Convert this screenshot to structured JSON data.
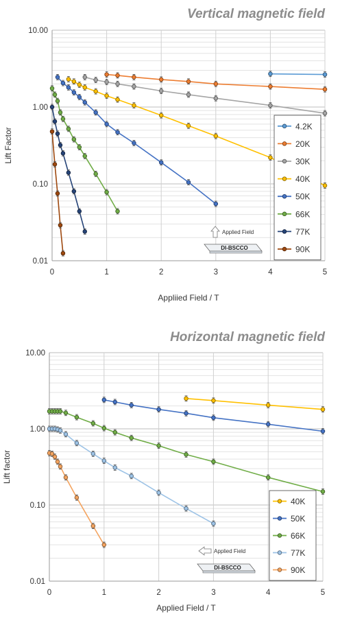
{
  "chart_data": [
    {
      "type": "scatter",
      "title": "Vertical magnetic field",
      "xlabel": "Appliied Field / T",
      "ylabel": "Lift Factor",
      "yscale": "log",
      "xlim": [
        0,
        5
      ],
      "ylim": [
        0.01,
        10
      ],
      "xticks": [
        "0",
        "1",
        "2",
        "3",
        "4",
        "5"
      ],
      "yticks": [
        "0.01",
        "0.10",
        "1.00",
        "10.00"
      ],
      "grid": true,
      "legend_position": "right",
      "annotation_arrow": "Applied Field",
      "annotation_sample": "DI-BSCCO",
      "series": [
        {
          "name": "4.2K",
          "color": "#5b9bd5",
          "x": [
            4,
            5
          ],
          "y": [
            2.7,
            2.65
          ]
        },
        {
          "name": "20K",
          "color": "#ed7d31",
          "x": [
            1,
            1.2,
            1.5,
            2,
            2.5,
            3,
            4,
            5
          ],
          "y": [
            2.65,
            2.58,
            2.45,
            2.28,
            2.15,
            2.0,
            1.85,
            1.7
          ]
        },
        {
          "name": "30K",
          "color": "#a5a5a5",
          "x": [
            0.6,
            0.8,
            1,
            1.2,
            1.5,
            2,
            2.5,
            3,
            4,
            5
          ],
          "y": [
            2.45,
            2.25,
            2.12,
            2.0,
            1.85,
            1.62,
            1.45,
            1.3,
            1.05,
            0.83
          ]
        },
        {
          "name": "40K",
          "color": "#ffc000",
          "x": [
            0.3,
            0.4,
            0.5,
            0.6,
            0.8,
            1,
            1.2,
            1.5,
            2,
            2.5,
            3,
            4,
            5
          ],
          "y": [
            2.3,
            2.15,
            1.95,
            1.8,
            1.6,
            1.4,
            1.25,
            1.05,
            0.78,
            0.57,
            0.42,
            0.22,
            0.095
          ]
        },
        {
          "name": "50K",
          "color": "#4472c4",
          "x": [
            0.1,
            0.2,
            0.3,
            0.4,
            0.5,
            0.6,
            0.8,
            1,
            1.2,
            1.5,
            2,
            2.5,
            3
          ],
          "y": [
            2.45,
            2.05,
            1.8,
            1.55,
            1.35,
            1.15,
            0.85,
            0.6,
            0.47,
            0.34,
            0.19,
            0.105,
            0.055
          ]
        },
        {
          "name": "66K",
          "color": "#70ad47",
          "x": [
            0,
            0.05,
            0.1,
            0.15,
            0.2,
            0.3,
            0.4,
            0.5,
            0.6,
            0.8,
            1,
            1.2
          ],
          "y": [
            1.75,
            1.45,
            1.2,
            0.85,
            0.7,
            0.52,
            0.38,
            0.3,
            0.23,
            0.135,
            0.078,
            0.044
          ]
        },
        {
          "name": "77K",
          "color": "#264478",
          "x": [
            0,
            0.05,
            0.1,
            0.15,
            0.2,
            0.3,
            0.4,
            0.5,
            0.6
          ],
          "y": [
            1.0,
            0.65,
            0.45,
            0.32,
            0.25,
            0.14,
            0.08,
            0.044,
            0.024
          ]
        },
        {
          "name": "90K",
          "color": "#9e480e",
          "x": [
            0,
            0.05,
            0.1,
            0.15,
            0.2
          ],
          "y": [
            0.48,
            0.18,
            0.075,
            0.029,
            0.0125
          ]
        }
      ]
    },
    {
      "type": "scatter",
      "title": "Horizontal magnetic field",
      "xlabel": "Applied Field / T",
      "ylabel": "Lift factor",
      "yscale": "log",
      "xlim": [
        0,
        5
      ],
      "ylim": [
        0.01,
        10
      ],
      "xticks": [
        "0",
        "1",
        "2",
        "3",
        "4",
        "5"
      ],
      "yticks": [
        "0.01",
        "0.10",
        "1.00",
        "10.00"
      ],
      "grid": true,
      "legend_position": "right",
      "annotation_arrow": "Applied Field",
      "annotation_sample": "DI-BSCCO",
      "series": [
        {
          "name": "40K",
          "color": "#ffc000",
          "x": [
            2.5,
            3,
            4,
            5
          ],
          "y": [
            2.5,
            2.35,
            2.05,
            1.8
          ]
        },
        {
          "name": "50K",
          "color": "#4472c4",
          "x": [
            1,
            1.2,
            1.5,
            2,
            2.5,
            3,
            4,
            5
          ],
          "y": [
            2.4,
            2.25,
            2.05,
            1.8,
            1.6,
            1.4,
            1.15,
            0.93
          ]
        },
        {
          "name": "66K",
          "color": "#70ad47",
          "x": [
            0,
            0.05,
            0.1,
            0.15,
            0.2,
            0.3,
            0.5,
            0.8,
            1,
            1.2,
            1.5,
            2,
            2.5,
            3,
            4,
            5
          ],
          "y": [
            1.7,
            1.7,
            1.7,
            1.7,
            1.7,
            1.62,
            1.42,
            1.18,
            1.02,
            0.9,
            0.76,
            0.6,
            0.46,
            0.37,
            0.23,
            0.15
          ]
        },
        {
          "name": "77K",
          "color": "#9dc3e6",
          "x": [
            0,
            0.05,
            0.1,
            0.15,
            0.2,
            0.3,
            0.5,
            0.8,
            1,
            1.2,
            1.5,
            2,
            2.5,
            3
          ],
          "y": [
            1.0,
            1.0,
            1.0,
            0.98,
            0.95,
            0.85,
            0.65,
            0.47,
            0.38,
            0.31,
            0.24,
            0.145,
            0.09,
            0.057
          ]
        },
        {
          "name": "90K",
          "color": "#f4a460",
          "x": [
            0,
            0.05,
            0.1,
            0.15,
            0.2,
            0.3,
            0.5,
            0.8,
            1
          ],
          "y": [
            0.48,
            0.47,
            0.43,
            0.37,
            0.32,
            0.23,
            0.125,
            0.053,
            0.03
          ]
        }
      ]
    }
  ]
}
